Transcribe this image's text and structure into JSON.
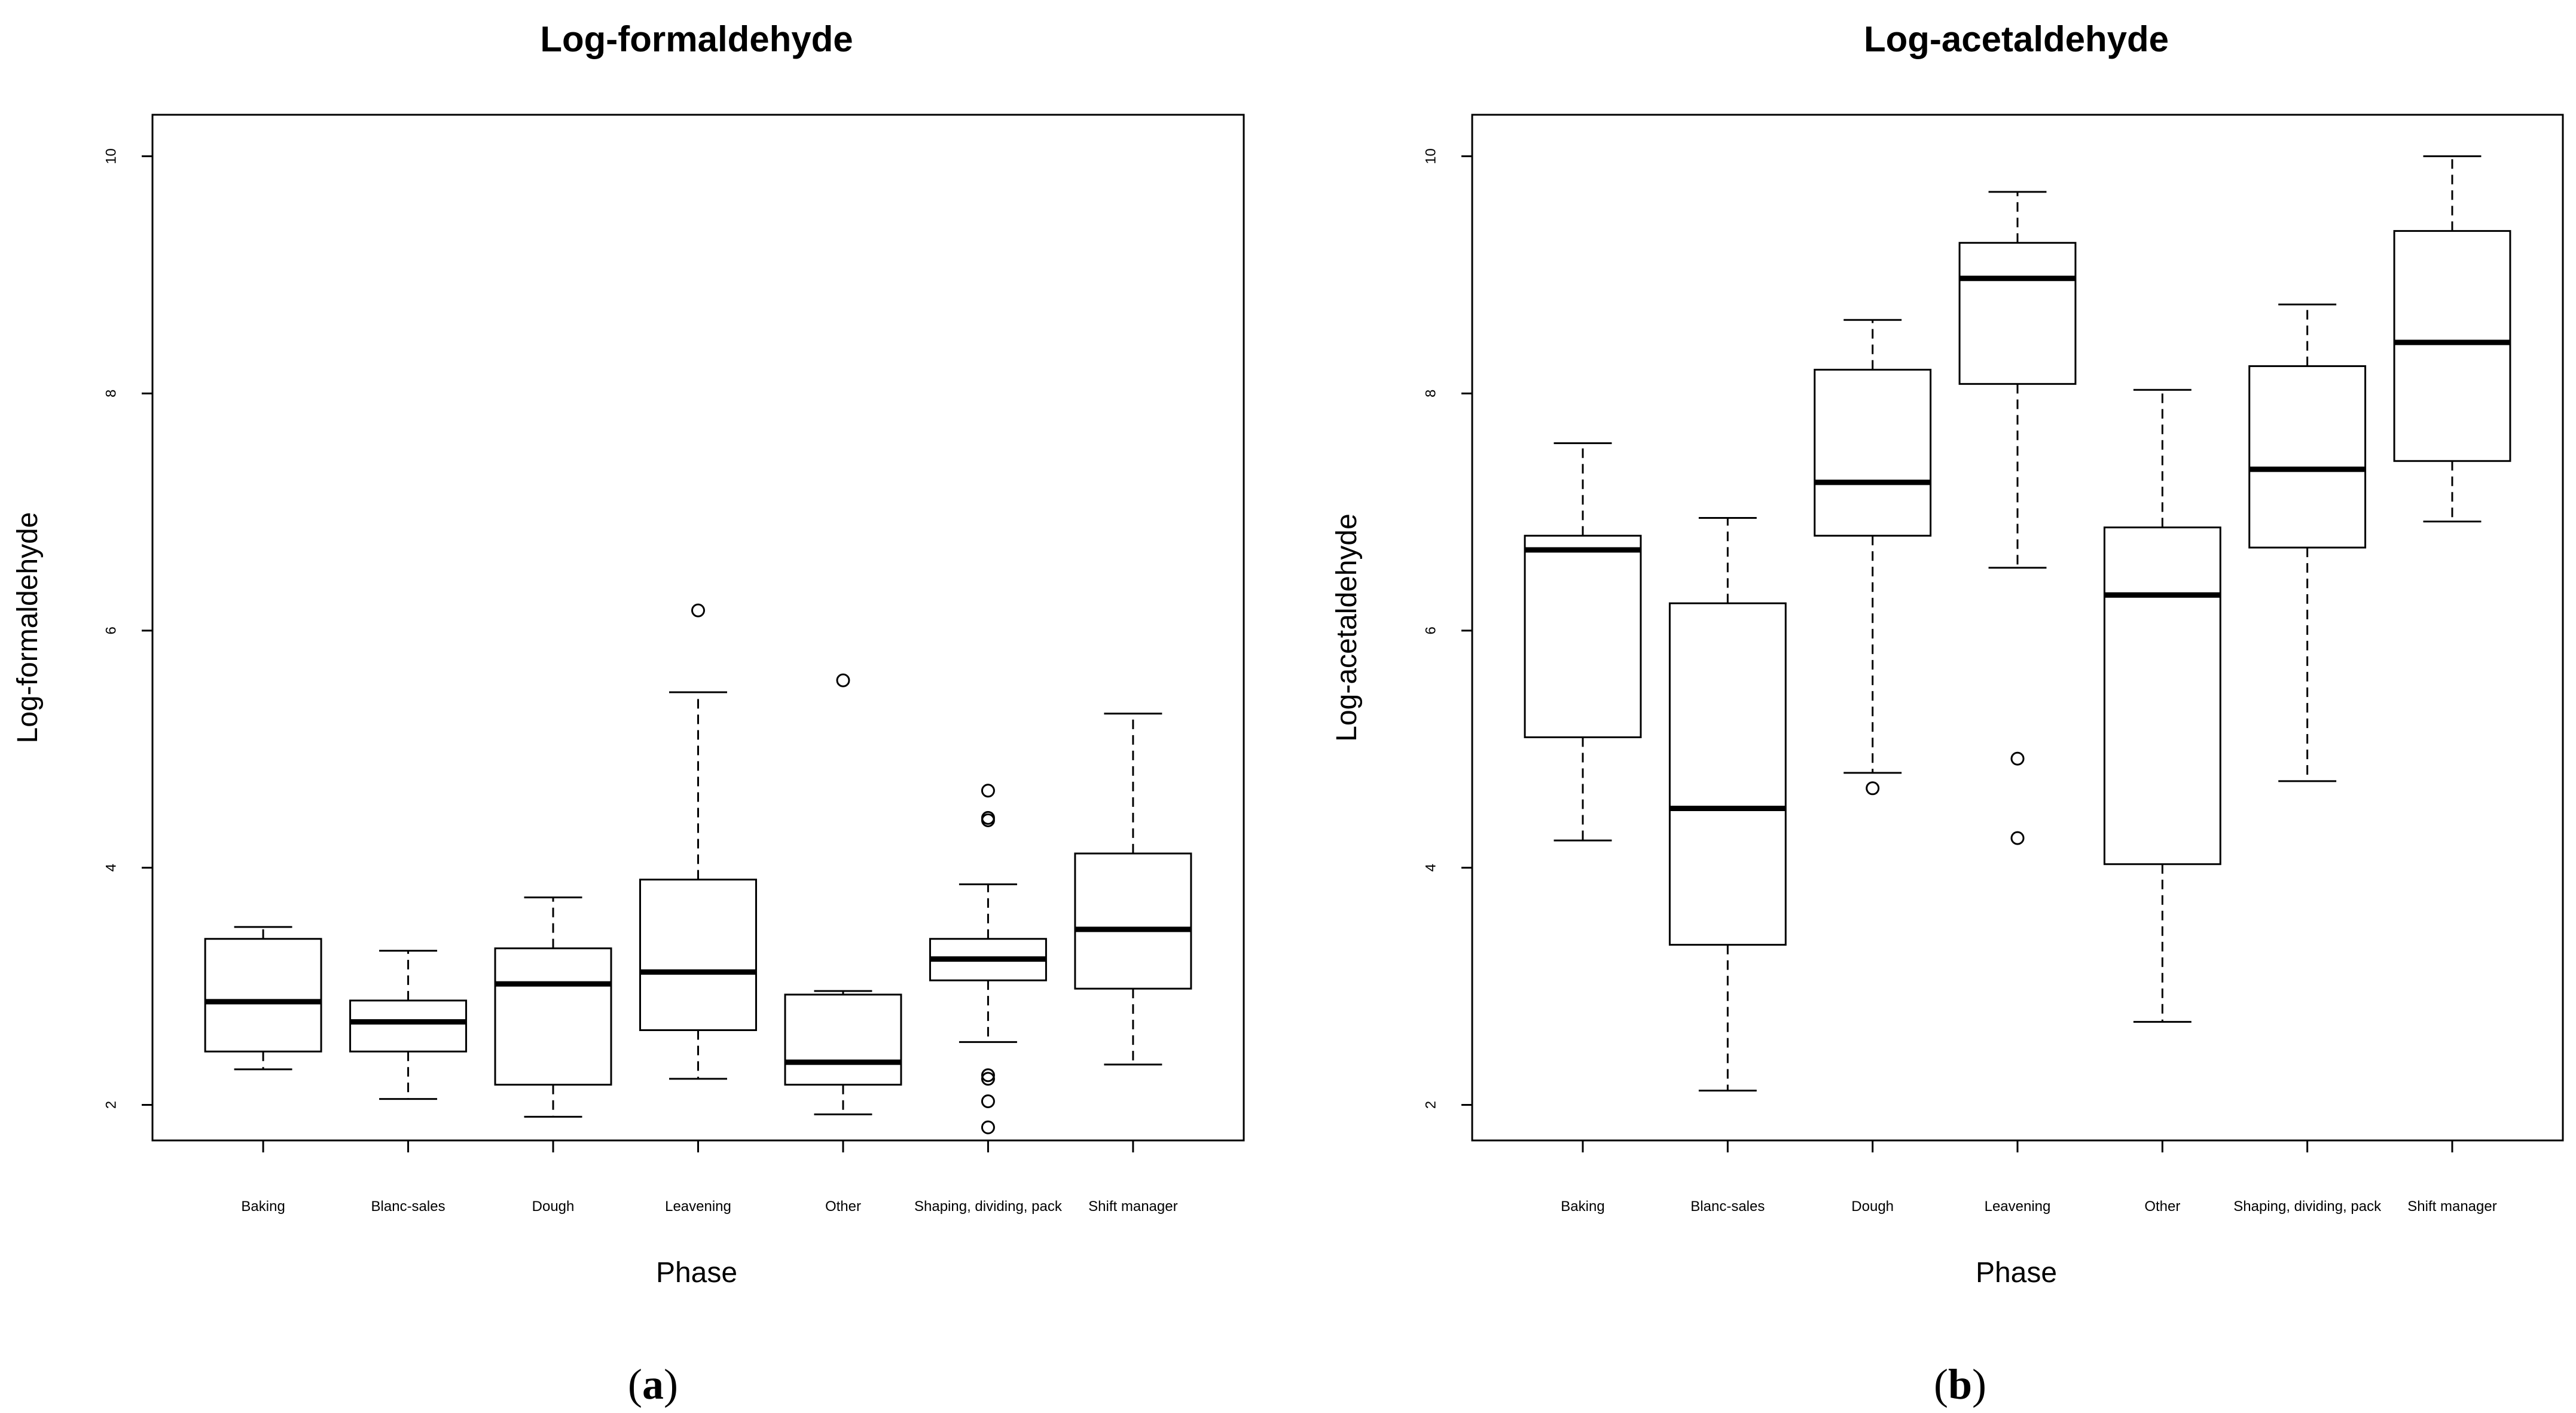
{
  "chart_data": [
    {
      "type": "boxplot",
      "panel_label": "a",
      "title": "Log-formaldehyde",
      "xlabel": "Phase",
      "ylabel": "Log-formaldehyde",
      "ylim": [
        1.7,
        10.35
      ],
      "yticks": [
        2,
        4,
        6,
        8,
        10
      ],
      "categories": [
        "Baking",
        "Blanc-sales",
        "Dough",
        "Leavening",
        "Other",
        "Shaping, dividing, pack",
        "Shift manager"
      ],
      "boxes": [
        {
          "whisker_low": 2.3,
          "q1": 2.45,
          "median": 2.87,
          "q3": 3.4,
          "whisker_high": 3.5,
          "outliers": []
        },
        {
          "whisker_low": 2.05,
          "q1": 2.45,
          "median": 2.7,
          "q3": 2.88,
          "whisker_high": 3.3,
          "outliers": []
        },
        {
          "whisker_low": 1.9,
          "q1": 2.17,
          "median": 3.02,
          "q3": 3.32,
          "whisker_high": 3.75,
          "outliers": []
        },
        {
          "whisker_low": 2.22,
          "q1": 2.63,
          "median": 3.12,
          "q3": 3.9,
          "whisker_high": 5.48,
          "outliers": [
            6.17
          ]
        },
        {
          "whisker_low": 1.92,
          "q1": 2.17,
          "median": 2.36,
          "q3": 2.93,
          "whisker_high": 2.96,
          "outliers": [
            5.58
          ]
        },
        {
          "whisker_low": 2.53,
          "q1": 3.05,
          "median": 3.23,
          "q3": 3.4,
          "whisker_high": 3.86,
          "outliers": [
            4.65,
            4.42,
            4.4,
            2.25,
            2.22,
            2.03,
            1.81
          ]
        },
        {
          "whisker_low": 2.34,
          "q1": 2.98,
          "median": 3.48,
          "q3": 4.12,
          "whisker_high": 5.3,
          "outliers": []
        }
      ]
    },
    {
      "type": "boxplot",
      "panel_label": "b",
      "title": "Log-acetaldehyde",
      "xlabel": "Phase",
      "ylabel": "Log-acetaldehyde",
      "ylim": [
        1.7,
        10.35
      ],
      "yticks": [
        2,
        4,
        6,
        8,
        10
      ],
      "categories": [
        "Baking",
        "Blanc-sales",
        "Dough",
        "Leavening",
        "Other",
        "Shaping, dividing, pack",
        "Shift manager"
      ],
      "boxes": [
        {
          "whisker_low": 4.23,
          "q1": 5.1,
          "median": 6.68,
          "q3": 6.8,
          "whisker_high": 7.58,
          "outliers": []
        },
        {
          "whisker_low": 2.12,
          "q1": 3.35,
          "median": 4.5,
          "q3": 6.23,
          "whisker_high": 6.95,
          "outliers": []
        },
        {
          "whisker_low": 4.8,
          "q1": 6.8,
          "median": 7.25,
          "q3": 8.2,
          "whisker_high": 8.62,
          "outliers": [
            4.67
          ]
        },
        {
          "whisker_low": 6.53,
          "q1": 8.08,
          "median": 8.97,
          "q3": 9.27,
          "whisker_high": 9.7,
          "outliers": [
            4.92,
            4.25
          ]
        },
        {
          "whisker_low": 2.7,
          "q1": 4.03,
          "median": 6.3,
          "q3": 6.87,
          "whisker_high": 8.03,
          "outliers": []
        },
        {
          "whisker_low": 4.73,
          "q1": 6.7,
          "median": 7.36,
          "q3": 8.23,
          "whisker_high": 8.75,
          "outliers": []
        },
        {
          "whisker_low": 6.92,
          "q1": 7.43,
          "median": 8.43,
          "q3": 9.37,
          "whisker_high": 10.0,
          "outliers": []
        }
      ]
    }
  ]
}
